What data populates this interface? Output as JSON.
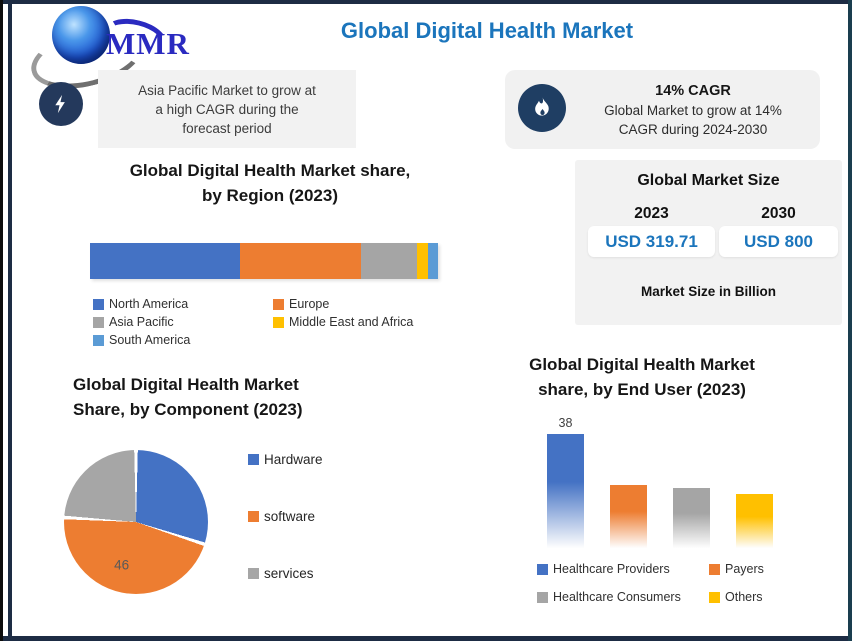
{
  "header": {
    "logo_text": "MMR",
    "title": "Global Digital Health Market",
    "title_color": "#1b75bc"
  },
  "icons": {
    "logo": "globe-icon",
    "left_callout": "lightning-icon",
    "right_callout": "flame-icon"
  },
  "callouts": {
    "left": {
      "text": "Asia Pacific Market to grow at\na high CAGR during the\nforecast period"
    },
    "right": {
      "heading": "14% CAGR",
      "text": "Global Market to grow at 14%\nCAGR during 2024-2030"
    }
  },
  "market_size": {
    "title": "Global Market Size",
    "years": [
      "2023",
      "2030"
    ],
    "values": [
      "USD 319.71",
      "USD 800"
    ],
    "note": "Market Size in Billion",
    "value_color": "#1b75bc"
  },
  "chart_data": [
    {
      "type": "bar",
      "variant": "stacked-horizontal-100pct",
      "title": "Global Digital Health Market share, by Region (2023)",
      "title_lines": [
        "Global Digital Health Market share,",
        "by Region (2023)"
      ],
      "categories": [
        "North America",
        "Europe",
        "Asia Pacific",
        "Middle East and Africa",
        "South America"
      ],
      "values": [
        43,
        35,
        16,
        3,
        3
      ],
      "unit": "% share",
      "colors": [
        "#4472C4",
        "#ED7D31",
        "#A5A5A5",
        "#FFC000",
        "#5B9BD5"
      ],
      "legend_position": "bottom",
      "grid": false
    },
    {
      "type": "pie",
      "title": "Global Digital Health Market Share, by Component (2023)",
      "title_lines": [
        "Global Digital Health Market",
        "Share, by Component (2023)"
      ],
      "categories": [
        "Hardware",
        "software",
        "services"
      ],
      "values": [
        30,
        46,
        24
      ],
      "colors": [
        "#4472C4",
        "#ED7D31",
        "#A6A6A6"
      ],
      "data_labels": [
        null,
        "46",
        null
      ],
      "legend_position": "right"
    },
    {
      "type": "bar",
      "title": "Global Digital Health Market share, by End User (2023)",
      "title_lines": [
        "Global Digital Health Market",
        "share, by End User (2023)"
      ],
      "categories": [
        "Healthcare Providers",
        "Payers",
        "Healthcare Consumers",
        "Others"
      ],
      "values": [
        38,
        21,
        20,
        18
      ],
      "colors": [
        "#4472C4",
        "#ED7D31",
        "#A5A5A5",
        "#FFC000"
      ],
      "data_labels": [
        "38",
        null,
        null,
        null
      ],
      "ylim": [
        0,
        46
      ],
      "bar_style": "vertical-gradient-fade",
      "legend_position": "bottom",
      "grid": false
    }
  ]
}
